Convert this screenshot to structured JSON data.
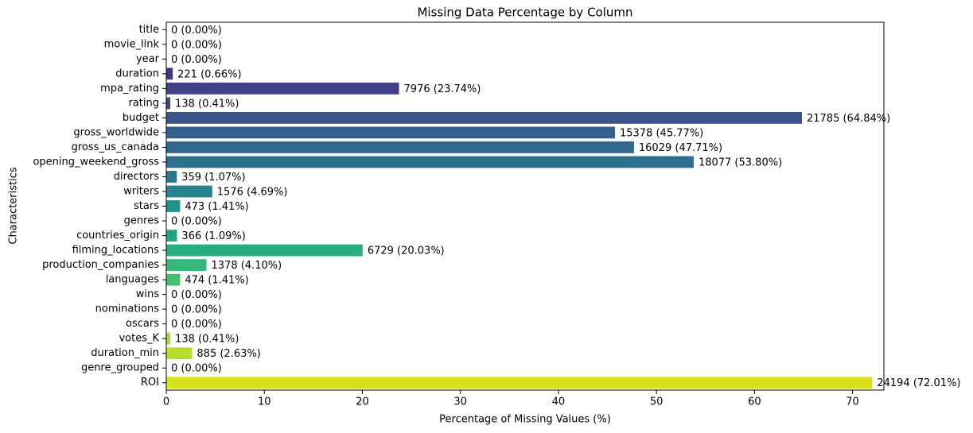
{
  "chart_data": {
    "type": "barh",
    "title": "Missing Data Percentage by Column",
    "xlabel": "Percentage of Missing Values (%)",
    "ylabel": "Characteristics",
    "categories": [
      "title",
      "movie_link",
      "year",
      "duration",
      "mpa_rating",
      "rating",
      "budget",
      "gross_worldwide",
      "gross_us_canada",
      "opening_weekend_gross",
      "directors",
      "writers",
      "stars",
      "genres",
      "countries_origin",
      "filming_locations",
      "production_companies",
      "languages",
      "wins",
      "nominations",
      "oscars",
      "votes_K",
      "duration_min",
      "genre_grouped",
      "ROI"
    ],
    "values": [
      0,
      0,
      0,
      0.66,
      23.74,
      0.41,
      64.84,
      45.77,
      47.71,
      53.8,
      1.07,
      4.69,
      1.41,
      0,
      1.09,
      20.03,
      4.1,
      1.41,
      0,
      0,
      0,
      0.41,
      2.63,
      0,
      72.01
    ],
    "value_labels": [
      "0 (0.00%)",
      "0 (0.00%)",
      "0 (0.00%)",
      "221 (0.66%)",
      "7976 (23.74%)",
      "138 (0.41%)",
      "21785 (64.84%)",
      "15378 (45.77%)",
      "16029 (47.71%)",
      "18077 (53.80%)",
      "359 (1.07%)",
      "1576 (4.69%)",
      "473 (1.41%)",
      "0 (0.00%)",
      "366 (1.09%)",
      "6729 (20.03%)",
      "1378 (4.10%)",
      "474 (1.41%)",
      "0 (0.00%)",
      "0 (0.00%)",
      "0 (0.00%)",
      "138 (0.41%)",
      "885 (2.63%)",
      "0 (0.00%)",
      "24194 (72.01%)"
    ],
    "colors": [
      "#471365",
      "#481f70",
      "#472c7a",
      "#453781",
      "#424086",
      "#3e4989",
      "#3a538b",
      "#355e8d",
      "#31688e",
      "#2d708e",
      "#2a788e",
      "#26828e",
      "#21918c",
      "#1f988b",
      "#20a386",
      "#28ae80",
      "#35b779",
      "#44bf70",
      "#58c765",
      "#6ece58",
      "#86d549",
      "#9fda3a",
      "#b5de2b",
      "#cae11f",
      "#d8e219"
    ],
    "xlim": [
      0,
      73.2
    ],
    "xticks": [
      0,
      10,
      20,
      30,
      40,
      50,
      60,
      70
    ]
  }
}
